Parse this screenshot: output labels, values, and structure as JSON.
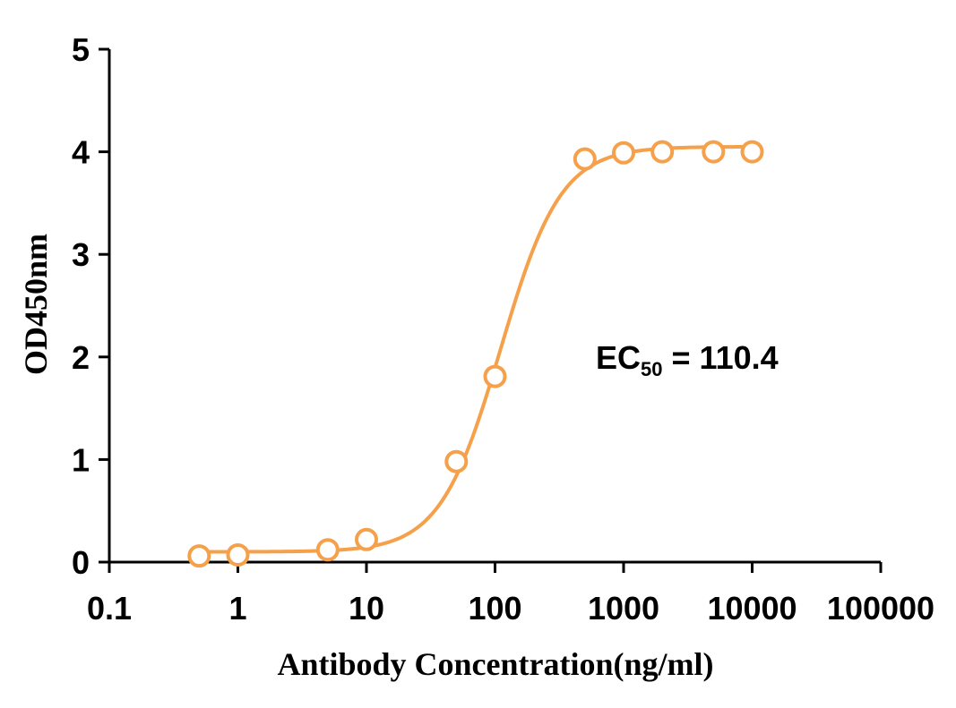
{
  "chart_data": {
    "type": "scatter",
    "title": "",
    "xlabel": "Antibody Concentration(ng/ml)",
    "ylabel": "OD450nm",
    "x_scale": "log",
    "xlim": [
      0.1,
      100000
    ],
    "ylim": [
      0,
      5
    ],
    "x_ticks": [
      0.1,
      1,
      10,
      100,
      1000,
      10000,
      100000
    ],
    "x_tick_labels": [
      "0.1",
      "1",
      "10",
      "100",
      "1000",
      "10000",
      "100000"
    ],
    "y_ticks": [
      0,
      1,
      2,
      3,
      4,
      5
    ],
    "y_tick_labels": [
      "0",
      "1",
      "2",
      "3",
      "4",
      "5"
    ],
    "grid": false,
    "color": "#F5A04A",
    "series": [
      {
        "x": [
          0.5,
          1,
          5,
          10,
          50,
          100,
          500,
          1000,
          2000,
          5000,
          10000
        ],
        "y": [
          0.06,
          0.07,
          0.12,
          0.22,
          0.98,
          1.81,
          3.93,
          3.99,
          4.0,
          4.0,
          4.0
        ]
      }
    ],
    "fit_curve": {
      "model": "4-parameter logistic",
      "bottom": 0.1,
      "top": 4.05,
      "ec50": 110.4,
      "hill": 1.85,
      "x_range": [
        0.5,
        10000
      ]
    },
    "annotation": {
      "prefix": "EC",
      "subscript": "50",
      "suffix": " = 110.4"
    }
  }
}
